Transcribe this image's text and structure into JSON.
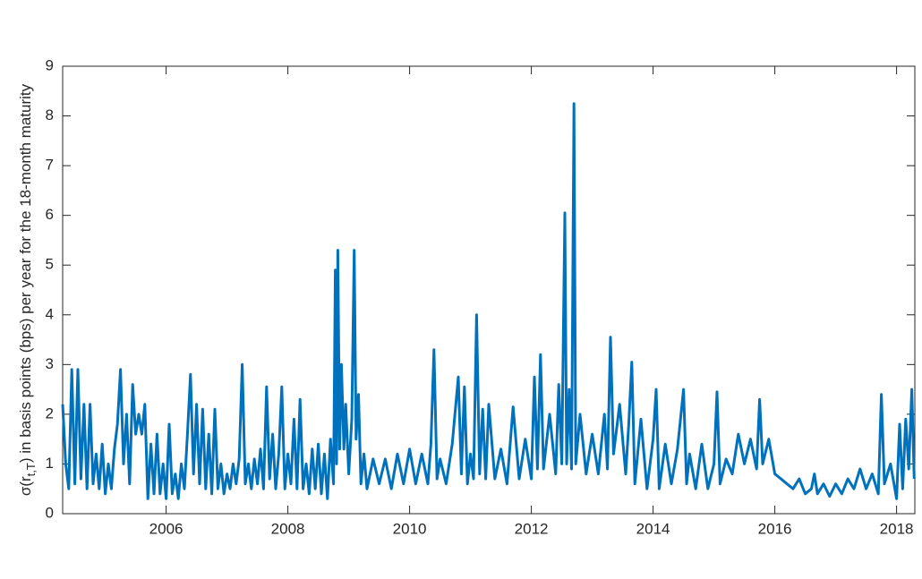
{
  "chart_data": {
    "type": "line",
    "y_label": {
      "prefix": "σ(r",
      "subscript": "t,T",
      "suffix": ") in basis points (bps) per year for the 18-month maturity"
    },
    "xlim": [
      2004.3,
      2018.3
    ],
    "xticks": [
      2006,
      2008,
      2010,
      2012,
      2014,
      2016,
      2018
    ],
    "ylim": [
      0,
      9
    ],
    "yticks": [
      0,
      1,
      2,
      3,
      4,
      5,
      6,
      7,
      8,
      9
    ],
    "grid": false,
    "series": [
      {
        "color": "#0072BD",
        "x": [
          2004.3,
          2004.35,
          2004.4,
          2004.45,
          2004.5,
          2004.55,
          2004.6,
          2004.65,
          2004.7,
          2004.75,
          2004.8,
          2004.85,
          2004.9,
          2004.95,
          2005.0,
          2005.05,
          2005.1,
          2005.15,
          2005.2,
          2005.25,
          2005.3,
          2005.35,
          2005.4,
          2005.45,
          2005.5,
          2005.55,
          2005.6,
          2005.65,
          2005.7,
          2005.75,
          2005.8,
          2005.85,
          2005.9,
          2005.95,
          2006.0,
          2006.05,
          2006.1,
          2006.15,
          2006.2,
          2006.25,
          2006.3,
          2006.35,
          2006.4,
          2006.45,
          2006.5,
          2006.55,
          2006.6,
          2006.65,
          2006.7,
          2006.75,
          2006.8,
          2006.85,
          2006.9,
          2006.95,
          2007.0,
          2007.05,
          2007.1,
          2007.15,
          2007.2,
          2007.25,
          2007.3,
          2007.35,
          2007.4,
          2007.45,
          2007.5,
          2007.55,
          2007.6,
          2007.65,
          2007.7,
          2007.75,
          2007.8,
          2007.85,
          2007.9,
          2007.95,
          2008.0,
          2008.05,
          2008.1,
          2008.15,
          2008.2,
          2008.25,
          2008.3,
          2008.35,
          2008.4,
          2008.45,
          2008.5,
          2008.55,
          2008.6,
          2008.65,
          2008.7,
          2008.75,
          2008.78,
          2008.8,
          2008.82,
          2008.85,
          2008.88,
          2008.92,
          2008.95,
          2009.0,
          2009.05,
          2009.09,
          2009.12,
          2009.16,
          2009.2,
          2009.25,
          2009.3,
          2009.4,
          2009.5,
          2009.6,
          2009.7,
          2009.8,
          2009.9,
          2010.0,
          2010.1,
          2010.2,
          2010.3,
          2010.35,
          2010.4,
          2010.45,
          2010.5,
          2010.6,
          2010.7,
          2010.8,
          2010.85,
          2010.9,
          2010.95,
          2011.0,
          2011.05,
          2011.1,
          2011.15,
          2011.2,
          2011.25,
          2011.3,
          2011.4,
          2011.5,
          2011.6,
          2011.7,
          2011.8,
          2011.9,
          2012.0,
          2012.05,
          2012.1,
          2012.15,
          2012.2,
          2012.3,
          2012.4,
          2012.45,
          2012.5,
          2012.55,
          2012.58,
          2012.62,
          2012.66,
          2012.7,
          2012.73,
          2012.8,
          2012.9,
          2013.0,
          2013.1,
          2013.2,
          2013.25,
          2013.3,
          2013.35,
          2013.45,
          2013.55,
          2013.6,
          2013.65,
          2013.7,
          2013.8,
          2013.9,
          2014.0,
          2014.05,
          2014.1,
          2014.2,
          2014.3,
          2014.4,
          2014.5,
          2014.55,
          2014.6,
          2014.7,
          2014.8,
          2014.9,
          2015.0,
          2015.05,
          2015.1,
          2015.2,
          2015.3,
          2015.4,
          2015.5,
          2015.6,
          2015.7,
          2015.75,
          2015.8,
          2015.9,
          2016.0,
          2016.1,
          2016.2,
          2016.3,
          2016.4,
          2016.5,
          2016.6,
          2016.65,
          2016.7,
          2016.8,
          2016.9,
          2017.0,
          2017.1,
          2017.2,
          2017.3,
          2017.4,
          2017.5,
          2017.6,
          2017.7,
          2017.75,
          2017.8,
          2017.9,
          2018.0,
          2018.05,
          2018.1,
          2018.15,
          2018.2,
          2018.25,
          2018.29
        ],
        "values": [
          2.2,
          1.0,
          0.5,
          2.9,
          0.6,
          2.9,
          0.7,
          2.2,
          0.5,
          2.2,
          0.6,
          1.2,
          0.5,
          1.4,
          0.4,
          1.0,
          0.5,
          1.3,
          1.8,
          2.9,
          1.0,
          2.0,
          0.6,
          2.6,
          1.6,
          2.0,
          1.6,
          2.2,
          0.3,
          1.4,
          0.4,
          1.6,
          0.4,
          1.0,
          0.3,
          1.8,
          0.4,
          0.8,
          0.3,
          1.0,
          0.5,
          1.6,
          2.8,
          0.8,
          2.2,
          0.6,
          2.1,
          0.5,
          1.6,
          0.4,
          2.1,
          0.5,
          1.0,
          0.4,
          0.8,
          0.5,
          1.0,
          0.6,
          1.1,
          3.0,
          0.6,
          1.0,
          0.5,
          1.1,
          0.6,
          1.3,
          0.5,
          2.55,
          0.7,
          1.6,
          0.5,
          1.2,
          2.55,
          0.5,
          1.2,
          0.6,
          1.9,
          0.5,
          2.3,
          0.5,
          1.0,
          0.4,
          1.3,
          0.5,
          1.4,
          0.4,
          1.2,
          0.3,
          1.5,
          0.6,
          4.9,
          1.0,
          5.3,
          1.3,
          3.0,
          1.3,
          2.2,
          0.8,
          1.9,
          5.3,
          1.5,
          2.4,
          0.6,
          1.2,
          0.5,
          1.1,
          0.6,
          1.1,
          0.5,
          1.2,
          0.6,
          1.3,
          0.6,
          1.2,
          0.6,
          1.4,
          3.3,
          0.7,
          1.1,
          0.6,
          1.4,
          2.75,
          0.8,
          2.55,
          0.6,
          1.2,
          0.7,
          4.0,
          0.8,
          2.1,
          0.7,
          2.2,
          0.7,
          1.3,
          0.6,
          2.15,
          0.7,
          1.5,
          0.7,
          2.75,
          0.9,
          3.2,
          0.9,
          2.0,
          0.8,
          2.6,
          1.0,
          6.05,
          1.0,
          2.5,
          0.9,
          8.25,
          1.0,
          2.0,
          0.8,
          1.6,
          0.8,
          2.0,
          0.9,
          3.55,
          1.2,
          2.2,
          0.8,
          1.8,
          3.05,
          0.6,
          1.9,
          0.5,
          1.5,
          2.5,
          0.5,
          1.4,
          0.6,
          1.3,
          2.5,
          0.6,
          1.2,
          0.5,
          1.4,
          0.5,
          1.0,
          2.45,
          0.6,
          1.1,
          0.8,
          1.6,
          1.0,
          1.5,
          0.9,
          2.3,
          1.0,
          1.5,
          0.8,
          0.7,
          0.6,
          0.5,
          0.7,
          0.4,
          0.5,
          0.8,
          0.4,
          0.6,
          0.35,
          0.6,
          0.4,
          0.7,
          0.5,
          0.9,
          0.5,
          0.8,
          0.4,
          2.4,
          0.6,
          1.0,
          0.3,
          1.8,
          0.5,
          1.9,
          0.9,
          2.5,
          0.7
        ]
      }
    ]
  }
}
